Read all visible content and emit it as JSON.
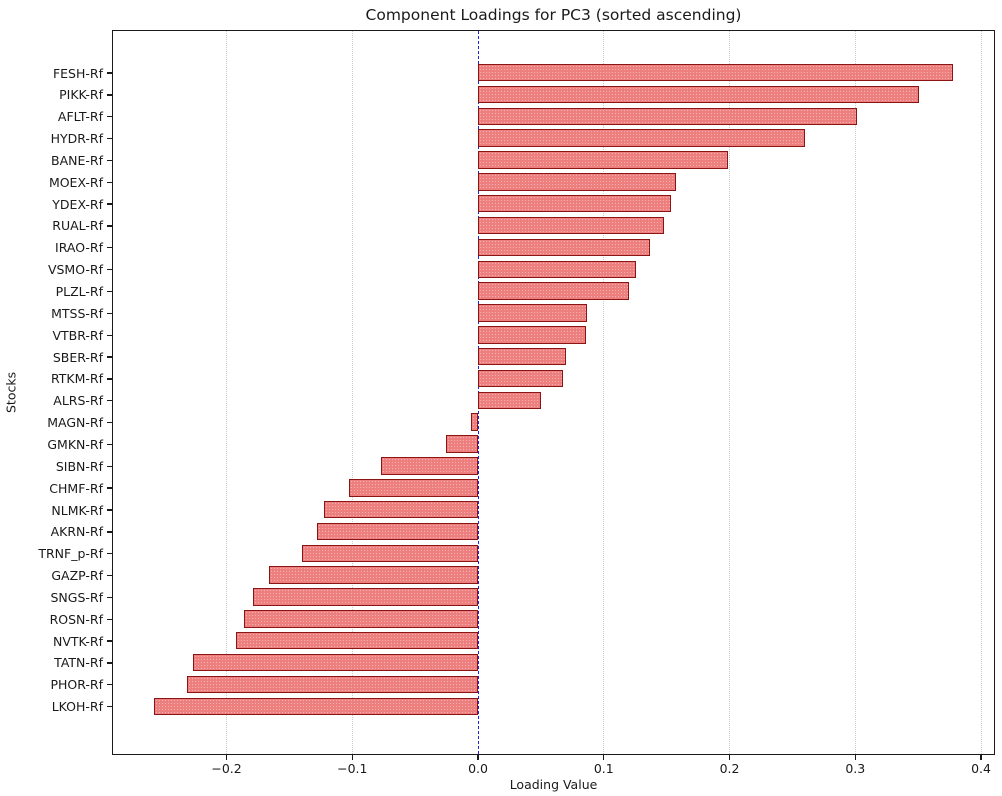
{
  "chart_data": {
    "type": "bar",
    "orientation": "horizontal",
    "title": "Component Loadings for PC3 (sorted ascending)",
    "xlabel": "Loading Value",
    "ylabel": "Stocks",
    "categories": [
      "FESH-Rf",
      "PIKK-Rf",
      "AFLT-Rf",
      "HYDR-Rf",
      "BANE-Rf",
      "MOEX-Rf",
      "YDEX-Rf",
      "RUAL-Rf",
      "IRAO-Rf",
      "VSMO-Rf",
      "PLZL-Rf",
      "MTSS-Rf",
      "VTBR-Rf",
      "SBER-Rf",
      "RTKM-Rf",
      "ALRS-Rf",
      "MAGN-Rf",
      "GMKN-Rf",
      "SIBN-Rf",
      "CHMF-Rf",
      "NLMK-Rf",
      "AKRN-Rf",
      "TRNF_p-Rf",
      "GAZP-Rf",
      "SNGS-Rf",
      "ROSN-Rf",
      "NVTK-Rf",
      "TATN-Rf",
      "PHOR-Rf",
      "LKOH-Rf"
    ],
    "values": [
      0.378,
      0.351,
      0.302,
      0.26,
      0.199,
      0.158,
      0.154,
      0.148,
      0.137,
      0.126,
      0.12,
      0.087,
      0.086,
      0.07,
      0.068,
      0.05,
      -0.005,
      -0.025,
      -0.077,
      -0.102,
      -0.122,
      -0.128,
      -0.14,
      -0.166,
      -0.179,
      -0.186,
      -0.192,
      -0.226,
      -0.231,
      -0.257
    ],
    "xlim": [
      -0.29,
      0.41
    ],
    "xticks": [
      -0.2,
      -0.1,
      0.0,
      0.1,
      0.2,
      0.3,
      0.4
    ],
    "xtick_labels": [
      "−0.2",
      "−0.1",
      "0.0",
      "0.1",
      "0.2",
      "0.3",
      "0.4"
    ],
    "sort_order": "ascending from bottom to top",
    "grid": {
      "axis": "x",
      "style": "dotted",
      "on": true
    },
    "zero_line": {
      "x": 0.0,
      "style": "dashed"
    },
    "legend": {
      "visible": false
    },
    "colors": {
      "bar_fill": "#ee7f7f",
      "bar_edge": "#8b1515",
      "zero_line": "#2222dd",
      "grid": "#cccccc",
      "axis": "#1a1a1a",
      "text": "#1a1a1a",
      "background": "#ffffff"
    }
  }
}
